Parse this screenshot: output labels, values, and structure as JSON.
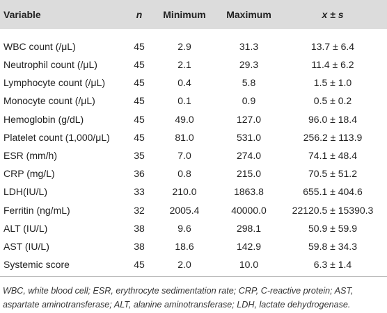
{
  "table": {
    "header": [
      "Variable",
      "n",
      "Minimum",
      "Maximum",
      "x ± s"
    ],
    "rows": [
      [
        "WBC count (/μL)",
        "45",
        "2.9",
        "31.3",
        "13.7 ± 6.4"
      ],
      [
        "Neutrophil count (/μL)",
        "45",
        "2.1",
        "29.3",
        "11.4 ± 6.2"
      ],
      [
        "Lymphocyte count (/μL)",
        "45",
        "0.4",
        "5.8",
        "1.5 ± 1.0"
      ],
      [
        "Monocyte count (/μL)",
        "45",
        "0.1",
        "0.9",
        "0.5 ± 0.2"
      ],
      [
        "Hemoglobin (g/dL)",
        "45",
        "49.0",
        "127.0",
        "96.0 ± 18.4"
      ],
      [
        "Platelet count (1,000/μL)",
        "45",
        "81.0",
        "531.0",
        "256.2 ± 113.9"
      ],
      [
        "ESR (mm/h)",
        "35",
        "7.0",
        "274.0",
        "74.1 ± 48.4"
      ],
      [
        "CRP (mg/L)",
        "36",
        "0.8",
        "215.0",
        "70.5 ± 51.2"
      ],
      [
        "LDH(IU/L)",
        "33",
        "210.0",
        "1863.8",
        "655.1 ± 404.6"
      ],
      [
        "Ferritin (ng/mL)",
        "32",
        "2005.4",
        "40000.0",
        "22120.5 ± 15390.3"
      ],
      [
        "ALT (IU/L)",
        "38",
        "9.6",
        "298.1",
        "50.9 ± 59.9"
      ],
      [
        "AST (IU/L)",
        "38",
        "18.6",
        "142.9",
        "59.8 ± 34.3"
      ],
      [
        "Systemic score",
        "45",
        "2.0",
        "10.0",
        "6.3 ± 1.4"
      ]
    ],
    "footnote": "WBC, white blood cell; ESR, erythrocyte sedimentation rate; CRP, C-reactive protein; AST, aspartate aminotransferase; ALT, alanine aminotransferase; LDH, lactate dehydrogenase."
  }
}
